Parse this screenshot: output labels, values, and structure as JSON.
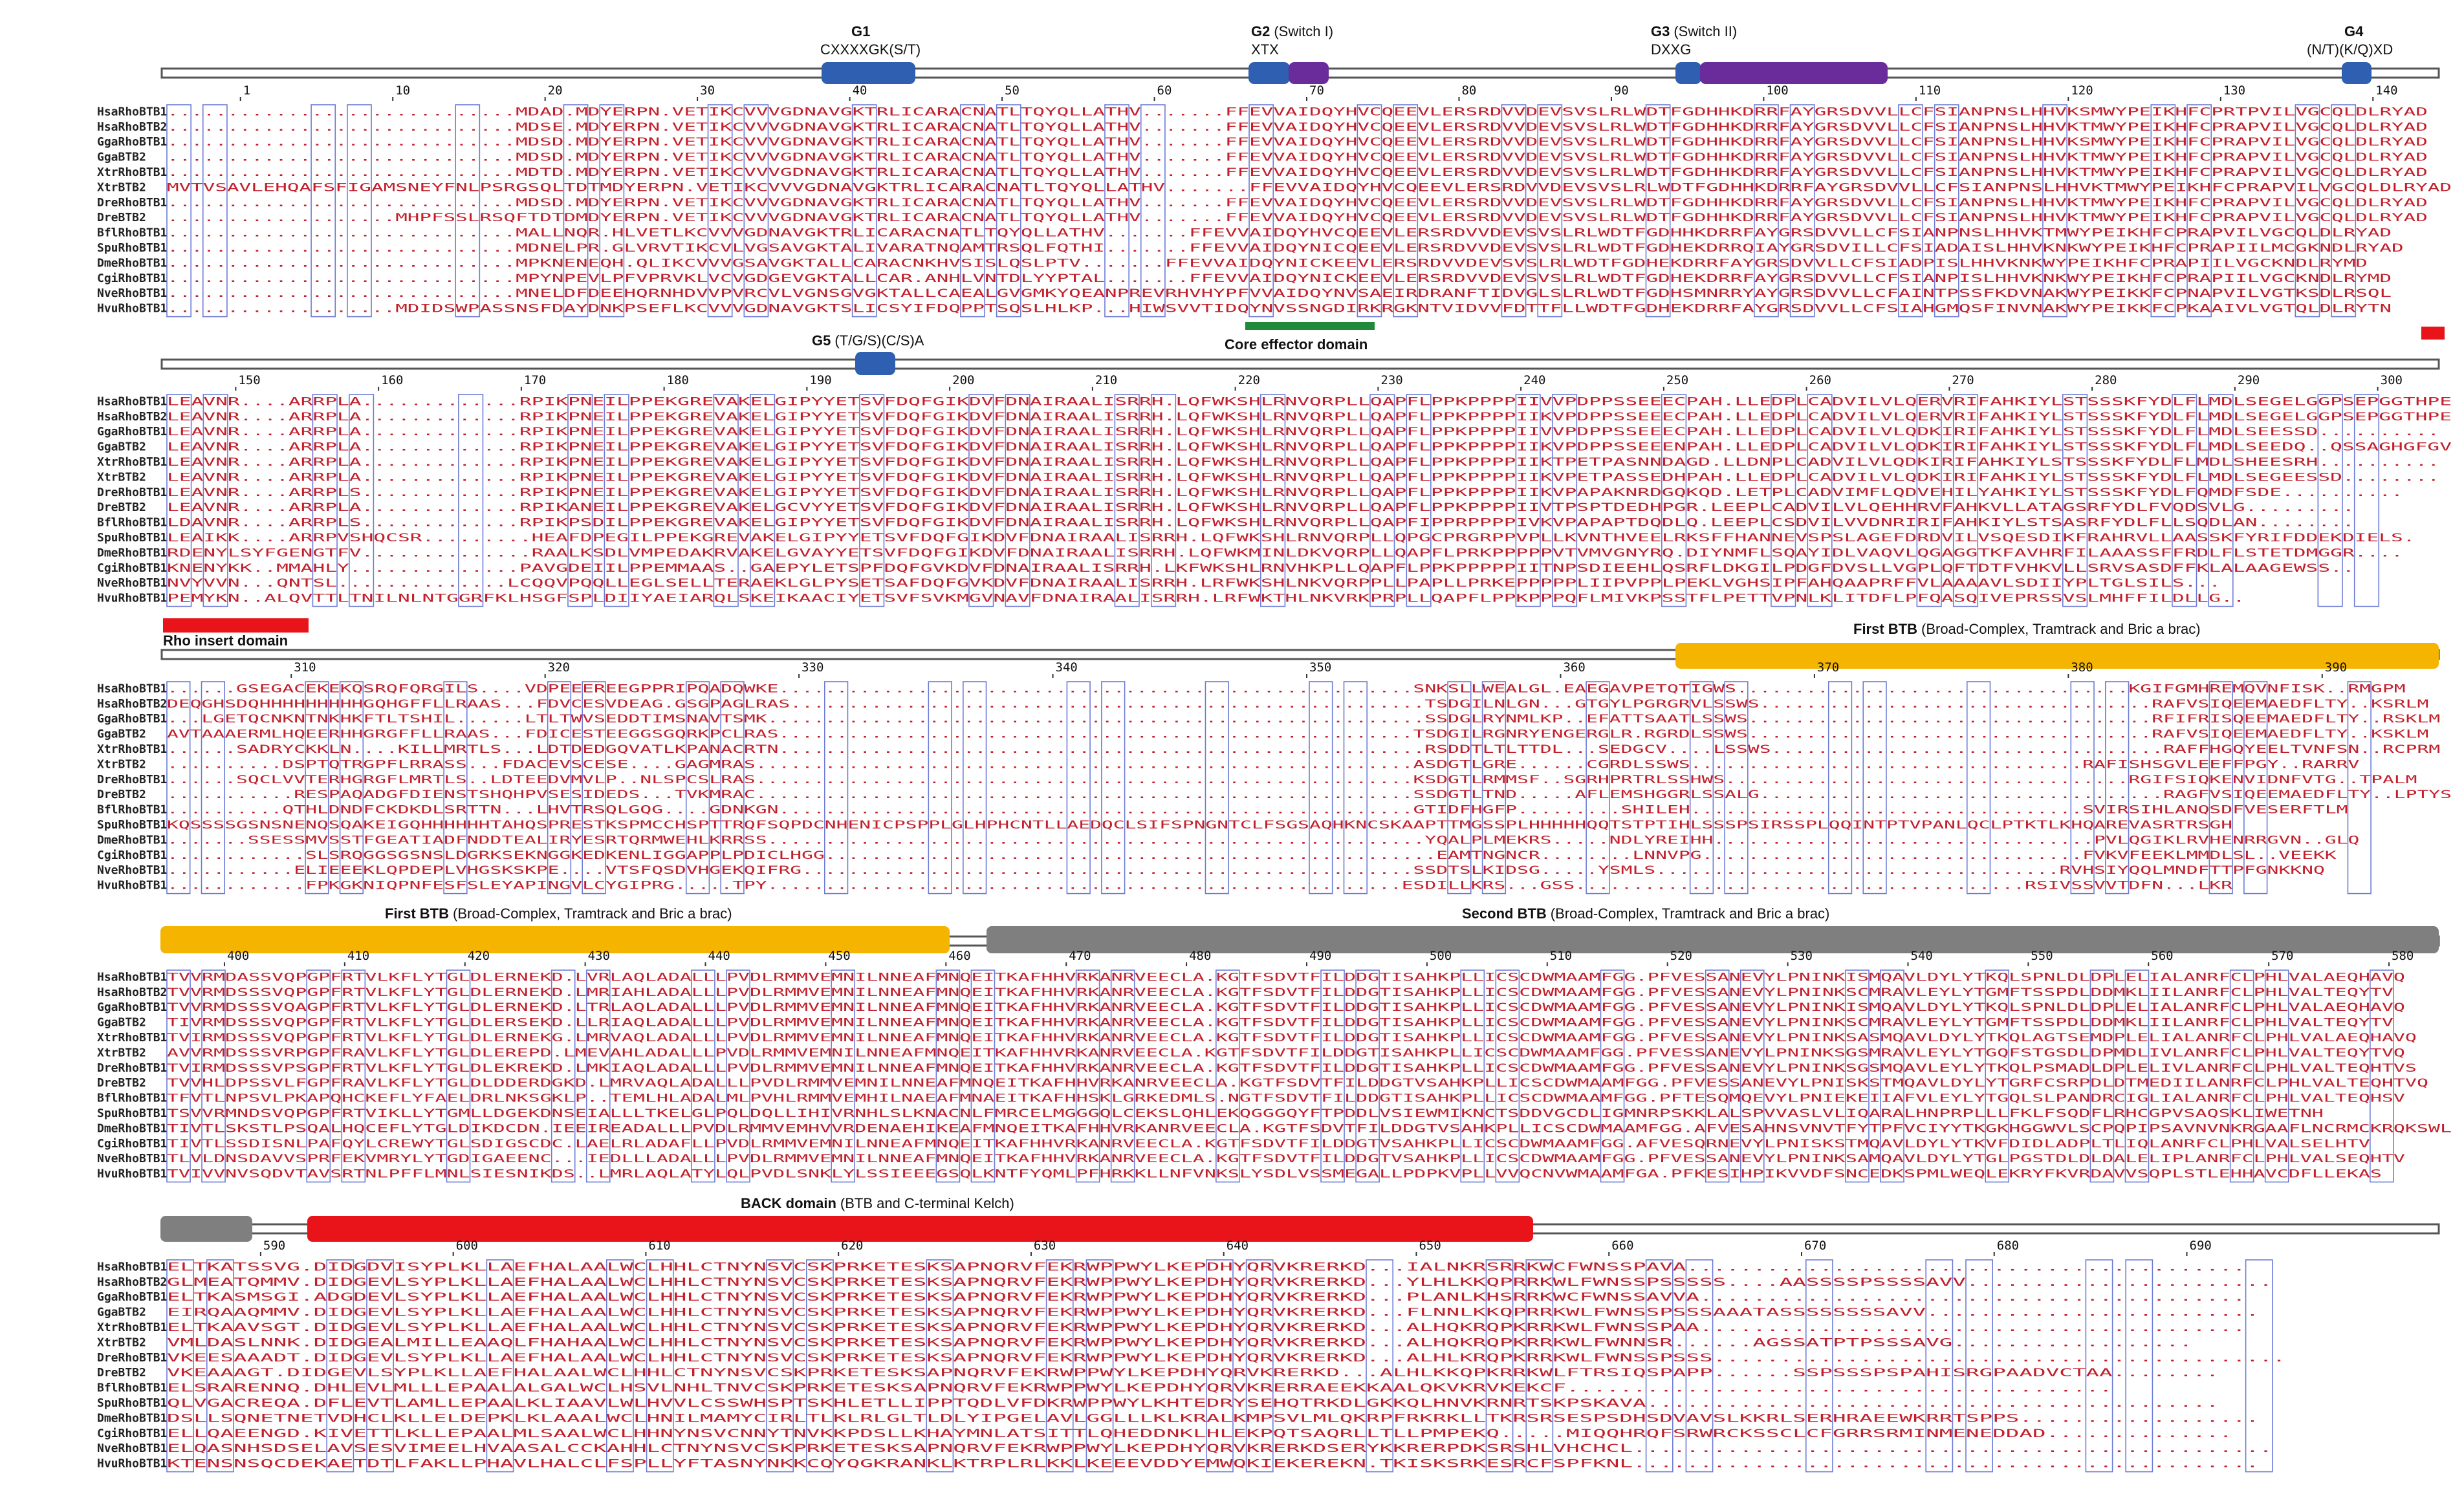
{
  "colors": {
    "backbone": "#9a9a9a",
    "motif_blue": "#2f5fb0",
    "switch_purple": "#6a2c9b",
    "effector_green": "#1f8a3a",
    "red": "#e8141a",
    "btb_yellow": "#f4b400",
    "grey_domain": "#7f7f7f",
    "conserved_red": "#e11919",
    "similar_box": "#6c7bd6",
    "residue_text": "#c21f2b"
  },
  "species": [
    "HsaRhoBTB1",
    "HsaRhoBTB2",
    "GgaRhoBTB1",
    "GgaBTB2",
    "XtrRhoBTB1",
    "XtrBTB2",
    "DreRhoBTB1",
    "DreBTB2",
    "BflRhoBTB1",
    "SpuRhoBTB1",
    "DmeRhoBTB1",
    "CgiRhoBTB1",
    "NveRhoBTB1",
    "HvuRhoBTB1"
  ],
  "blocks": [
    {
      "ruler": [
        "1",
        "10",
        "20",
        "30",
        "40",
        "50",
        "60",
        "70",
        "80",
        "90",
        "100",
        "110",
        "120",
        "130",
        "140"
      ],
      "features": [
        {
          "name": "G1",
          "desc": "CXXXXGK(S/T)"
        },
        {
          "name": "G2",
          "desc": "(Switch I)",
          "sub": "XTX"
        },
        {
          "name": "G3",
          "desc": "(Switch II)",
          "sub": "DXXG"
        },
        {
          "name": "G4",
          "desc": "",
          "sub": "(N/T)(K/Q)XD"
        },
        {
          "name": "G5",
          "desc": "(T/G/S)(C/S)A"
        },
        {
          "name": "Core effector domain",
          "desc": ""
        }
      ],
      "sequences": [
        ".............................MDAD.MDYERPN.VETIKCVVVGDNAVGKTRLICARACNATLTQYQLLATHV.......FFEVVAIDQYHVCQEEVLERSRDVVDEVSVSLRLWDTFGDHHKDRRFAYGRSDVVLLCFSIANPNSLHHVKSMWYPEIKHFCPRTPVILVGCQLDLRYAD",
        ".............................MDSE.MDYERPN.VETIKCVVVGDNAVGKTRLICARACNATLTQYQLLATHV.......FFEVVAIDQYHVCQEEVLERSRDVVDEVSVSLRLWDTFGDHHKDRRFAYGRSDVVLLCFSIANPNSLHHVKTMWYPEIKHFCPRAPVILVGCQLDLRYAD",
        ".............................MDSD.MDYERPN.VETIKCVVVGDNAVGKTRLICARACNATLTQYQLLATHV.......FFEVVAIDQYHVCQEEVLERSRDVVDEVSVSLRLWDTFGDHHKDRRFAYGRSDVVLLCFSIANPNSLHHVKSMWYPEIKHFCPRAPVILVGCQLDLRYAD",
        ".............................MDSD.MDYERPN.VETIKCVVVGDNAVGKTRLICARACNATLTQYQLLATHV.......FFEVVAIDQYHVCQEEVLERSRDVVDEVSVSLRLWDTFGDHHKDRRFAYGRSDVVLLCFSIANPNSLHHVKTMWYPEIKHFCPRAPVILVGCQLDLRYAD",
        ".............................MDTD.MDYERPN.VETIKCVVVGDNAVGKTRLICARACNATLTQYQLLATHV.......FFEVVAIDQYHVCQEEVLERSRDVVDEVSVSLRLWDTFGDHHKDRRFAYGRSDVVLLCFSIANPNSLHHVKTMWYPEIKHFCPRAPVILVGCQLDLRYAD",
        "MVTVSAVLEHQAFSFIGAMSNEYFNLPSRGSQLTDTMDYERPN.VETIKCVVVGDNAVGKTRLICARACNATLTQYQLLATHV.......FFEVVAIDQYHVCQEEVLERSRDVVDEVSVSLRLWDTFGDHHKDRRFAYGRSDVVLLCFSIANPNSLHHVKTMWYPEIKHFCPRAPVILVGCQLDLRYAD",
        ".............................MDSD.MDYERPN.VETIKCVVVGDNAVGKTRLICARACNATLTQYQLLATHV.......FFEVVAIDQYHVCQEEVLERSRDVVDEVSVSLRLWDTFGDHHKDRRFAYGRSDVVLLCFSIANPNSLHHVKTMWYPEIKHFCPRAPVILVGCQLDLRYAD",
        "...................MHPFSSLRSQFTDTDMDYERPN.VETIKCVVVGDNAVGKTRLICARACNATLTQYQLLATHV.......FFEVVAIDQYHVCQEEVLERSRDVVDEVSVSLRLWDTFGDHHKDRRFAYGRSDVVLLCFSIANPNSLHHVKTMWYPEIKHFCPRAPVILVGCQLDLRYAD",
        ".............................MALLNQR.HLVETLKCVVVGDNAVGKTRLICARACNATLTQYQLLATHV.......FFEVVAIDQYHVCQEEVLERSRDVVDEVSVSLRLWDTFGDHHKDRRFAYGRSDVVLLCFSIANPNSLHHVKTMWYPEIKHFCPRAPVILVGCQLDLRYAD",
        ".............................MDNELPR.GLVRVTIKCVLVGSAVGKTALIVARATNQAMTRSQLFQTHI.......FFEVVAIDQYNICQEEVLERSRDVVDEVSVSLRLWDTFGDHEKDRRQIAYGRSDVILLCFSIADAISLHHVKNKWYPEIKHFCPRAPIILMCGKNDLRYAD",
        ".............................MPKNENEQH.QLIKCVVVGSAVGKTALLCARACNKHVSISLQSLPTV.......FFEVVAIDQYNICKEEVLERSRDVVDEVSVSLRLWDTFGDHEKDRRFAYGRSDVVLLCFSIADPISLHHVKNKWYPEIKHFCPRAPIILVGCKNDLRYMD",
        ".............................MPYNPEVLPFVPRVKLVCVGDGEVGKTALLCAR.ANHLVNTDLYYPTAL.......FFEVVAIDQYNICKEEVLERSRDVVDEVSVSLRLWDTFGDHEKDRRFAYGRSDVVLLCFSIANPISLHHVKNKWYPEIKHFCPRAPIILVGCKNDLRYMD",
        ".............................MNELDFDEEHQRNHDVVPVRCVLVGNSGVGKTALLCAEALGVGMKYQEANPREVRHVHYPFVVAIDQYNVSAEIRDRANFTIDVGLSLRLWDTFGDHSMNRRYAYGRSDVVLLCFAINTPSSFKDVNAKWYPEIKKFCPNAPVILVGTKSDLRSQL",
        "...................MDIDSWPASSNSFDAYDNKPSEFLKCVVVGDNAVGKTSLICSYIFDQPPTSQSLHLKP...HIWSVVTIDQYNVSSNGDIRKRGKNTVIDVVFDTTFLLWDTFGDHEKDRRFAYGRSDVVLLCFSIAHGMQSFINVNAKWYPEIKKFCPKAAIVLVGTQLDLRYTN"
      ]
    },
    {
      "ruler": [
        "150",
        "160",
        "170",
        "180",
        "190",
        "200",
        "210",
        "220",
        "230",
        "240",
        "250",
        "260",
        "270",
        "280",
        "290",
        "300"
      ],
      "features": [
        {
          "name": "Rho insert domain",
          "desc": ""
        },
        {
          "name": "First BTB",
          "desc": "(Broad-Complex, Tramtrack and Bric a brac)"
        }
      ],
      "sequences": [
        "LEAVNR....ARRPLA.............RPIKPNEILPPEKGREVAKELGIPYYETSVFDQFGIKDVFDNAIRAALISRRH.LQFWKSHLRNVQRPLLQAPFLPPKPPPPIIVVPDPPSSEEECPAH.LLEDPLCADVILVLQERVRIFAHKIYLSTSSSKFYDLFLMDLSEGELGGPSEPGGTHPE",
        "LEAVNR....ARRPLA.............RPIKPNEILPPEKGREVAKELGIPYYETSVFDQFGIKDVFDNAIRAALISRRH.LQFWKSHLRNVQRPLLQAPFLPPKPPPPIIKVPDPPSSEEECPAH.LLEDPLCADVILVLQERVRIFAHKIYLSTSSSKFYDLFLMDLSEGELGGPSEPGGTHPE",
        "LEAVNR....ARRPLA.............RPIKPNEILPPEKGREVAKELGIPYYETSVFDQFGIKDVFDNAIRAALISRRH.LQFWKSHLRNVQRPLLQAPFLPPKPPPPIIVVPDPPSSEEECPAH.LLEDPLCADVILVLQDKIRIFAHKIYLSTSSSKFYDLFLMDLSEESSD..........",
        "LEAVNR....ARRPLA.............RPIKPNEILPPEKGREVAKELGIPYYETSVFDQFGIKDVFDNAIRAALISRRH.LQFWKSHLRNVQRPLLQAPFLPPKPPPPIIKVPDPPSSEEENPAH.LLEDPLCADVILVLQDKIRIFAHKIYLSTSSSKFYDLFLMDLSEEDQ..QSSAGHGFGV",
        "LEAVNR....ARRPLA.............RPIKPNEILPPEKGREVAKELGIPYYETSVFDQFGIKDVFDNAIRAALISRRH.LQFWKSHLRNVQRPLLQAPFLPPKPPPPIIKTPETPASNNDAGD.LLDNPLCADVILVLQDKIRIFAHKIYLSTSSSKFYDLFLMDLSHEESRH..........",
        "LEAVNR....ARRPLA.............RPIKPNEILPPEKGREVAKELGIPYYETSVFDQFGIKDVFDNAIRAALISRRH.LQFWKSHLRNVQRPLLQAPFLPPKPPPPIIKVPETPASSEDHPAH.LLEDPLCADVILVLQDKIRIFAHKIYLSTSSSKFYDLFLMDLSEGEESSD........",
        "LEAVNR....ARRPLS.............RPIKPNEILPPEKGREVAKELGIPYYETSVFDQFGIKDVFDNAIRAALISRRH.LQFWKSHLRNVQRPLLQAPFLPPKPPPPIIKVPAPAKNRDGQKQD.LETPLCADVIMFLQDVEHILYAHKIYLSTSSSKFYDLFQMDFSDE..........",
        "LEAVNR....ARRPLA.............RPIKANEILPPEKGREVAKELGCVYYETSVFDQFGIKDVFDNAIRAALISRRH.LQFWKSHLRNVQRPLLQAPFLPPKPPPPIIVTPSPTDEDHPGR.LEEPLCADVILVLQEHHRVFAHKVLLATAGSRFYDLFVQDSVLG.........",
        "LDAVNR....ARRPLS.............RPIKPSDILPPEKGREVAKELGIPYYETSVFDQFGIKDVFDNAIRAALISRRH.LQFWKSHLRNVQRPLLQAPFIPPRPPPPIVKVPAPAPTDQDLQ.LEEPLCSDVILVVDNRIRIFAHKIYLSTSASRFYDLFLLSQDLAN........",
        "LEAIKK....ARRPVSHQCSR.........HEAFDPEGILPPEKGREVAKELGIPYYETSVFDQFGIKDVFDNAIRAALISRRH.LQFWKSHLRNVQRPLLQPGCPRGRPPVPLLKVNTHVEELRKSFFHANNEVSPSLAGEFDRDVILVSQESDIKFRAHRVLLAASSKFYRIFDDEKDIELS.",
        "RDENYLSYFGENGTFV..............RAALKSDLVMPEDAKRVAKELGVAYYETSVFDQFGIKDVFDNAIRAALISRRH.LQFWKMINLDKVQRPLLQAPFLPRKPPPPPVTVMVGNYRQ.DIYNMFLSQAYIDLVAQVLQGAGGTKFAVHRFILAAASSFFRDLFLSTETDMGGR....",
        "KNENYKK..MMAHLY..............PAVGDEIILPPEMMAAS..GAEPYLETSPFDQFGVKDVFDNAIRAALISRRH.LKFWKSHLRNVHKPLLQAPFLPPKPPPPPIITNPSDIEEHLQSRFLDKGILPDGFDVSLLVGPLQFTDTFVHKVLLSRVSASDFFKLALAAGEWSS..",
        "NVYVVN...QNTSL..............LCQQVPQQLLEGLSELLTERAEKLGLPYSETSAFDQFGVKDVFDNAIRAALISRRH.LRFWKSHLNKVQRPPLLPAPLLPRKEPPPPPLIIPVPPLPEKLVGHSIPFAHQAAPRFFVLAAAAVLSDIIYPLTGLSILS...",
        "PEMYKN..ALQVTTLTNILNLNTGGRFKLHSGFSPLDIIYAEIARQLSKEIKAACIYETSVFSVKMGVNAVFDNAIRAALISRRH.LRFWKTHLNKVRKPRPLLQAPFLPPKPPPQFLMIVKPSSTFLPETTVPNLKLITDFLPFQASQIVEPRSSVSLMHFFILDLLG.."
      ]
    },
    {
      "ruler": [
        "310",
        "320",
        "330",
        "340",
        "350",
        "360",
        "370",
        "380",
        "390"
      ],
      "features": [
        {
          "name": "First BTB",
          "desc": "(Broad-Complex, Tramtrack and Bric a brac)"
        },
        {
          "name": "Second BTB",
          "desc": "(Broad-Complex, Tramtrack and Bric a brac)"
        }
      ],
      "sequences": [
        "......GSEGACEKEKQSRQFQRGILS....VDPEEEREEGPPRIPQADQWKE.......................................................SNKSLLWEALGL.EAEGAVPETQTIGWS..................................KGIFGMHREMQVNFISK..RMGPM",
        "DEQGHSDQHHHHHHHHHGQHGFFLLRAAS...FDVCESVDEAG.GSGPAGLRAS.......................................................TSDGILNLGN...GTGYLPGRGRVLSSWS..................................RAFVSIQEEMAEDFLTY..KSRLM",
        "...LGETQCNKNTNKHKFTLTSHIL......LTLTWVSEDDTIMSNAVTSMK.........................................................SSDGLRYNMLKP..EFATTSAATLSSWS...................................RFIFRISQEEMAEDFLTY..RSKLM",
        "AVTAAAERMLHQEERHHGRGFFLLRAAS...FDICESTEEGGSGQRKPCLRAS.......................................................TSDGILRGNRYENGERGLR.RGRDLSSWS...................................RAFVSIQEEMAEDFLTY..KSKLM",
        "......SADRYCKKLN....KILLMRTLS...LDTDEDGQVATLKPANACRTN........................................................RSDDTLTLTTDL...SEDGCV....LSSWS..................................RAFFHGQYEELTVNFSN..RCPRM",
        "..........DSPTQTRGPFLRRASS...FDACEVSCESE....GAGMRAS.........................................................ASDGTLGRE......CGRDLSSWS..................................RAFISHSGVLEEFFPGY..RARRV",
        "......SQCLVVTERHGRGFLMRTLS..LDTEEDVMVLP..NLSPCSLRAS.........................................................KSDGTLRMMSF..SGRHPRTRLSSHWS...................................RGIFSIQKENVIDNFVTG..TPALM",
        "...........RESPAQADGFDIENSTSHQHPVSESIDEDS...TVKMRAC.........................................................SSDGTLTND.....AFLEMSHGGRLSSALG...................................RAGFVSIQEEMAEDFLTY..LPTYS",
        "..........QTHLDNDFCKDKDLSRTTN...LHVTRSQLGQG....GDNKGN.......................................................GTIDFHGFP.........SHILEH..................................SVIRSIHLANQSDFVESERFTLM",
        "KQSSSSGSNSNENQSQAKEIGQHHHHHHTAHQSPRESTKSPMCCHSPTTRQFSQPDCNHENICPSPPLGLHPHCNTLLAEDQCLSIFSPNGNTCLFSGSAQHKNCSKAAPTTMGSSPLHHHHHQQTSTPTIHLSSSPSIRSSPLQQINTPTVPANLQCLPTKTLKHQAREVASRTRSGH",
        ".......SSESSMVSSTFGEATIADFNDDTEALIRYESRTQRMWEHLKRRSS.........................................................YQALPLMEKRS.....NDLYREIHH.................................PVLQGIKLRVHENRRGVN..GLQ",
        "............SLSRQGGSGSNSLDGRKSEKNGGKEDKENLIGGAPPLPDICLHGG.....................................................EAMTNGNCR........LNNVPG.................................FVKVFEEKLMMDLSL..VEEKK",
        "...........ELIEEEKLQPDEPLVHGSKSKPE....VTSFQSDVHGEKQIFRG.....................................................SSDTSLKIDSG.....YSMLS...................................RVHSIYQQLMNDFTTPFGNKKNQ",
        "............FPKGKNIQPNFESFSLEYAPINGVLCYGIPRG.....TPY.......................................................ESDILLKRS...GSS.......................................RSIVSSVVTDFN...LKR"
      ]
    },
    {
      "ruler": [
        "400",
        "410",
        "420",
        "430",
        "440",
        "450",
        "460",
        "470",
        "480",
        "490",
        "500",
        "510",
        "520",
        "530",
        "540",
        "550",
        "560",
        "570",
        "580"
      ],
      "features": [
        {
          "name": "BACK domain",
          "desc": "(BTB and C-terminal Kelch)"
        }
      ],
      "sequences": [
        "TVVRMDASSVQPGPFRTVLKFLYTGLDLERNEKD.LVRLAQLADALLLPVDLRMMVEMNILNNEAFMNQEITKAFHHVRKANRVEECLA.KGTFSDVTFILDDGTISAHKPLLICSCDWMAAMFGG.PFVESSANEVYLPNINKISMQAVLDYLYTKQLSPNLDLDPLELIALANRFCLPHLVALAEQHAVQ",
        "TVVRMDSSSVQPGPFRTVLKFLYTGLDLERNEKD.LMRIAHLADALLLPVDLRMMVEMNILNNEAFMNQEITKAFHHVRKANRVEECLA.KGTFSDVTFILDDGTISAHKPLLICSCDWMAAMFGG.PFVESSANEVYLPNINKSCMRAVLEYLYTGMFTSSPDLDDMKLIILANRFCLPHLVALTEQYTV",
        "TVVRMDSSSVQAGPFRTVLKFLYTGLDLERNEKD.LTRLAQLADALLLPVDLRMMVEMNILNNEAFMNQEITKAFHHVRKANRVEECLA.KGTFSDVTFILDDGTISAHKPLLICSCDWMAAMFGG.PFVESSANEVYLPNINKISMQAVLDYLYTKQLSPNLDLDPLELIALANRFCLPHLVALAEQHAVQ",
        "TIVRMDSSSVQPGPFRTVLKFLYTGLDLERSEKD.LLRIAQLADALLLPVDLRMMVEMNILNNEAFMNQEITKAFHHVRKANRVEECLA.KGTFSDVTFILDDGTISAHKPLLICSCDWMAAMFGG.PFVESSANEVYLPNINKSCMRAVLEYLYTGMFTSSPDLDDMKLIILANRFCLPHLVALTEQYTV",
        "TVIRMDSSSVQPGPFRTVLKFLYTGLDLERNEKG.LMRVAQLADALLLPVDLRMMVEMNILNNEAFMNQEITKAFHHVRKANRVEECLA.KGTFSDVTFILDDGTISAHKPLLICSCDWMAAMFGG.PFVESSANEVYLPNINKSASMQAVLDYLYTKQLAGTSEMDPLELIALANRFCLPHLVALAEQHAVQ",
        "AVVRMDSSSVRPGPFRAVLKFLYTGLDLEREPD.LMEVAHLADALLLPVDLRMMVEMNILNNEAFMNQEITKAFHHVRKANRVEECLA.KGTFSDVTFILDDGTISAHKPLLICSCDWMAAMFGG.PFVESSANEVYLPNINKSGSMRAVLEYLYTGQFSTGSDLDPMDLIVLANRFCLPHLVALTEQYTVQ",
        "TVIRMDSSSVPSGPFRTVLKFLYTGLDLEKREKD.LMKIAQLADALLLPVDLRMMVEMNILNNEAFMNQEITKAFHHVRKANRVEECLA.KGTFSDVTFILDDGTISAHKPLLICSCDWMAAMFGG.PFVESSANEVYLPNINKSGSMQAVLEYLYTKQLPSMADLDPLELIVLANRFCLPHLVALTEQHTVS",
        "TVVHLDPSSVLFGPFRAVLKFLYTGLDLDDERDGKD.LMRVAQLADALLLPVDLRMMVEMNILNNEAFMNQEITKAFHHVRKANRVEECLA.KGTFSDVTFILDDGTVSAHKPLLICSCDWMAAMFGG.PFVESSANEVYLPNISKSTMQAVLDYLYTGRFCSRPDLDTMEDIILANRFCLPHLVALTEQHTVQ",
        "TFVTLNPSVLPKAPQHCKEFLYFAELDRLNKSGKLP..TEMLHLADALMLPVHLRMMVEMHILNAEAFMNAEITKAFHHSKLGRKEDMLS.NGTFSDVTFILDDGTISAHKPLLICSCDWMAAMFGG.PFTESQMQEVYLPNIEKEIIAFVLEYLYTGQLSLPANDRCIGLIALANRFCLPHLVALTEQHSV",
        "TSVVRMNDSVQPGPFRTVIKLLYTGMLLDGEKDNSEIALLLTKELGLPQLDQLLIHIVRNHLSLKNACNLFMRCELMGGGQLCEKSLQHLEKQGGGQYFTPDDLVSIEWMIKNCTSDDVGCDLIGMNRPSKKLALSPVVASLVLIQARALHNPRPLLLFKLFSQDFLRHCGPVSAQSKLIWETNH",
        "TIVTLSKSTLPSQALHQCEFLYTGLDIKDCDN.IEEIREADALLLPVDLRMMVEMHVVRDENAEHIKEAFMNQEITKAFHHVRKANRVEECLA.KGTFSDVTFILDDGTVSAHKPLLICSCDWMAAMFGG.AFVESAHNSVNVTFYTPFVCIYYTKGKHGGWVLSCPQPIPSAVNVNKRGAAFLNCRMCKRQKSWL",
        "TIVTLSSDISNLPAFQYLCREWYTGLSDIGSCDC.LAELRLADAFLLPVDLRMMVEMNILNNEAFMNQEITKAFHHVRKANRVEECLA.KGTFSDVTFILDDGTVSAHKPLLICSCDWMAAMFGG.AFVESQRNEVYLPNISKSTMQAVLDYLYTKVFDIDLADPLTLIQLANRFCLPHLVALSELHTV",
        "TLVLDNSDAVVSPRFEKVMRYLYTGDIGAEENC...IEDLLLADALLLPVDLRMMVEMNILNNEAFMNQEITKAFHHVRKANRVEECLA.KGTFSDVTFILDDGTVSAHKPLLICSCDWMAAMFGG.PFVESSANEVYLPNINKSAMQAVLDYLYTGLPGSTDLDLDALELIPLANRFCLPHLVALSEQHTV",
        "TVIVVNVSQDVTAVSRTNLPFFLMNLSIESNIKDS..LMRLAQLATYLQLPVDLSNKLYLSSIEEEGSQLKNTFYQMLPFHRKKLLNFVNKSLYSDLVSSMEGALLPDPKVPLLVVQCNVWMAAMFGA.PFKESIHPIKVVDFSNCEDKSPMLWEQLEKRYFKVRDAVVSQPLSTLEHHAVCDFLLEKAS"
      ]
    },
    {
      "ruler": [
        "590",
        "600",
        "610",
        "620",
        "630",
        "640",
        "650",
        "660",
        "670",
        "680",
        "690"
      ],
      "features": [],
      "sequences": [
        "ELTKATSSVG.DIDGDVISYPLKLLAEFHALAALWCLHHLCTNYNSVCSKPRKETESKSAPNQRVFEKRWPPWYLKEPDHYQRVKRERKD...IALNKRSRRKWCFWNSSPAVA..........................................",
        "GLMEATQMMV.DIDGEVLSYPLKLLAEFHALAALWCLHHLCTNYNSVCSKPRKETESKSAPNQRVFEKRWPPWYLKEPDHYQRVKRERKD...YLHLKKQPRRKWLFWNSSPSSSSS....AASSSSPSSSSAVV.......................",
        "ELTKASMSGI.ADGDEVLSYPLKLLAEFHALAALWCLHHLCTNYNSVCSKPRKETESKSAPNQRVFEKRWPPWYLKEPDHYQRVKRERKD...PLANLKHSRRKWCFWNSSAVVA.........................................",
        "EIRQAAQMMV.DIDGEVLSYPLKLLAEFHALAALWCLHHLCTNYNSVCSKPRKETESKSAPNQRVFEKRWPPWYLKEPDHYQRVKRERKD...FLNNLKKQPRRKWLFWNSSPSSSAAATASSSSSSSSAVV.........................",
        "ELTKAAVSGT.DIDGEVLSYPLKLLAEFHALAALWCLHHLCTNYNSVCSKPRKETESKSAPNQRVFEKRWPPWYLKEPDHYQRVKRERKD...ALHQKRQPKRRKWLFWNSSPAA.........................................",
        "VMLDASLNNK.DIDGEALMILLEAAQLFHAHAALWCLHHLCTNYNSVCSKPRKETESKSAPNQRVFEKRWPPWYLKEPDHYQRVKRERKD...ALHQKRQPKRRKWLFWNNSR......AGSSATPTPSSSAVG..................",
        "VKEESAAADT.DIDGEVLSYPLKLLAEFHALAALWCLHHLCTNYNSVCSKPRKETESKSAPNQRVFEKRWPPWYLKEPDHYQRVKRERKD...ALHLKRQPKRRKWLFWNSSPSSS...........................................",
        "VKEAAAGT.DIDGEVLSYPLKLLAEFHALAALWCLHHLCTNYNSVCSKPRKETESKSAPNQRVFEKRWPPWYLKEPDHYQRVKRERKD...ALHLKKQPKRRKWLFTRSIQSPAPP......SSPSSSPSPAHISRGPAADVCTAA........",
        "ELSRARENNQ.DHLEVLMLLLEPAALALGALWCLHSVLNHLTNVCSKPRKETESKSAPNQRVFEKRWPPWYLKEPDHYQRVKRERRAEEKKAALQKVKRVKEKCF.........................................",
        "QLVGACREQA.DFLEVTLAMLLEPAALKLIAAVLWLHVVLCSSWHSPTSKHLETLLIPPTQDLVFDKRWPPWYLKHTEDRYSEHQTRKDLGKKQLHNVKRNRTSKPSKAVA...........................................",
        "DSLLSQNETNETVDHCLKLLELDEPKLKLAAALWCLHNILMAMYCIRLTLKLRLGLTLDLYIPGELAVLGGLLLKLKRALKMPSVLMLQKRPFRKRKLLTKRSRSESPSDHSDVAVSLKKRLSERHRAEEWKRRTSPPS..................",
        "ELLQAEENGD.KIVETTLKLLEPAALMLSAALWCLHHNYNSVCNNYTNVKKPDSLLKHAYMNLATSITTLQHEDDNKLHLEKPQTSAQRLLTLLPMPEKQ.....MIQQHRQFSRWRCKSSCLCFGRRSRMINMENEDDAD..............",
        "ELQASNHSDSELAVSESVIMEELHVAASALCCKAHHLCTNYNSVCSKPRKETESKSAPNQRVFEKRWPPWYLKEPDHYQRVKRERKDSERYKKRERPDKSRSHLVHCHCL................................................",
        "KTENSNSQCDEKAETDTLFAKLLPHAVLHALCLFSPLLYFTASNYNKKCQYQGKRANKLKTRPLRLKKLKEEEVDDYEMWQKIEKEREKN.TKISKSRKESRCFSPFKNL..............................................."
      ]
    }
  ]
}
